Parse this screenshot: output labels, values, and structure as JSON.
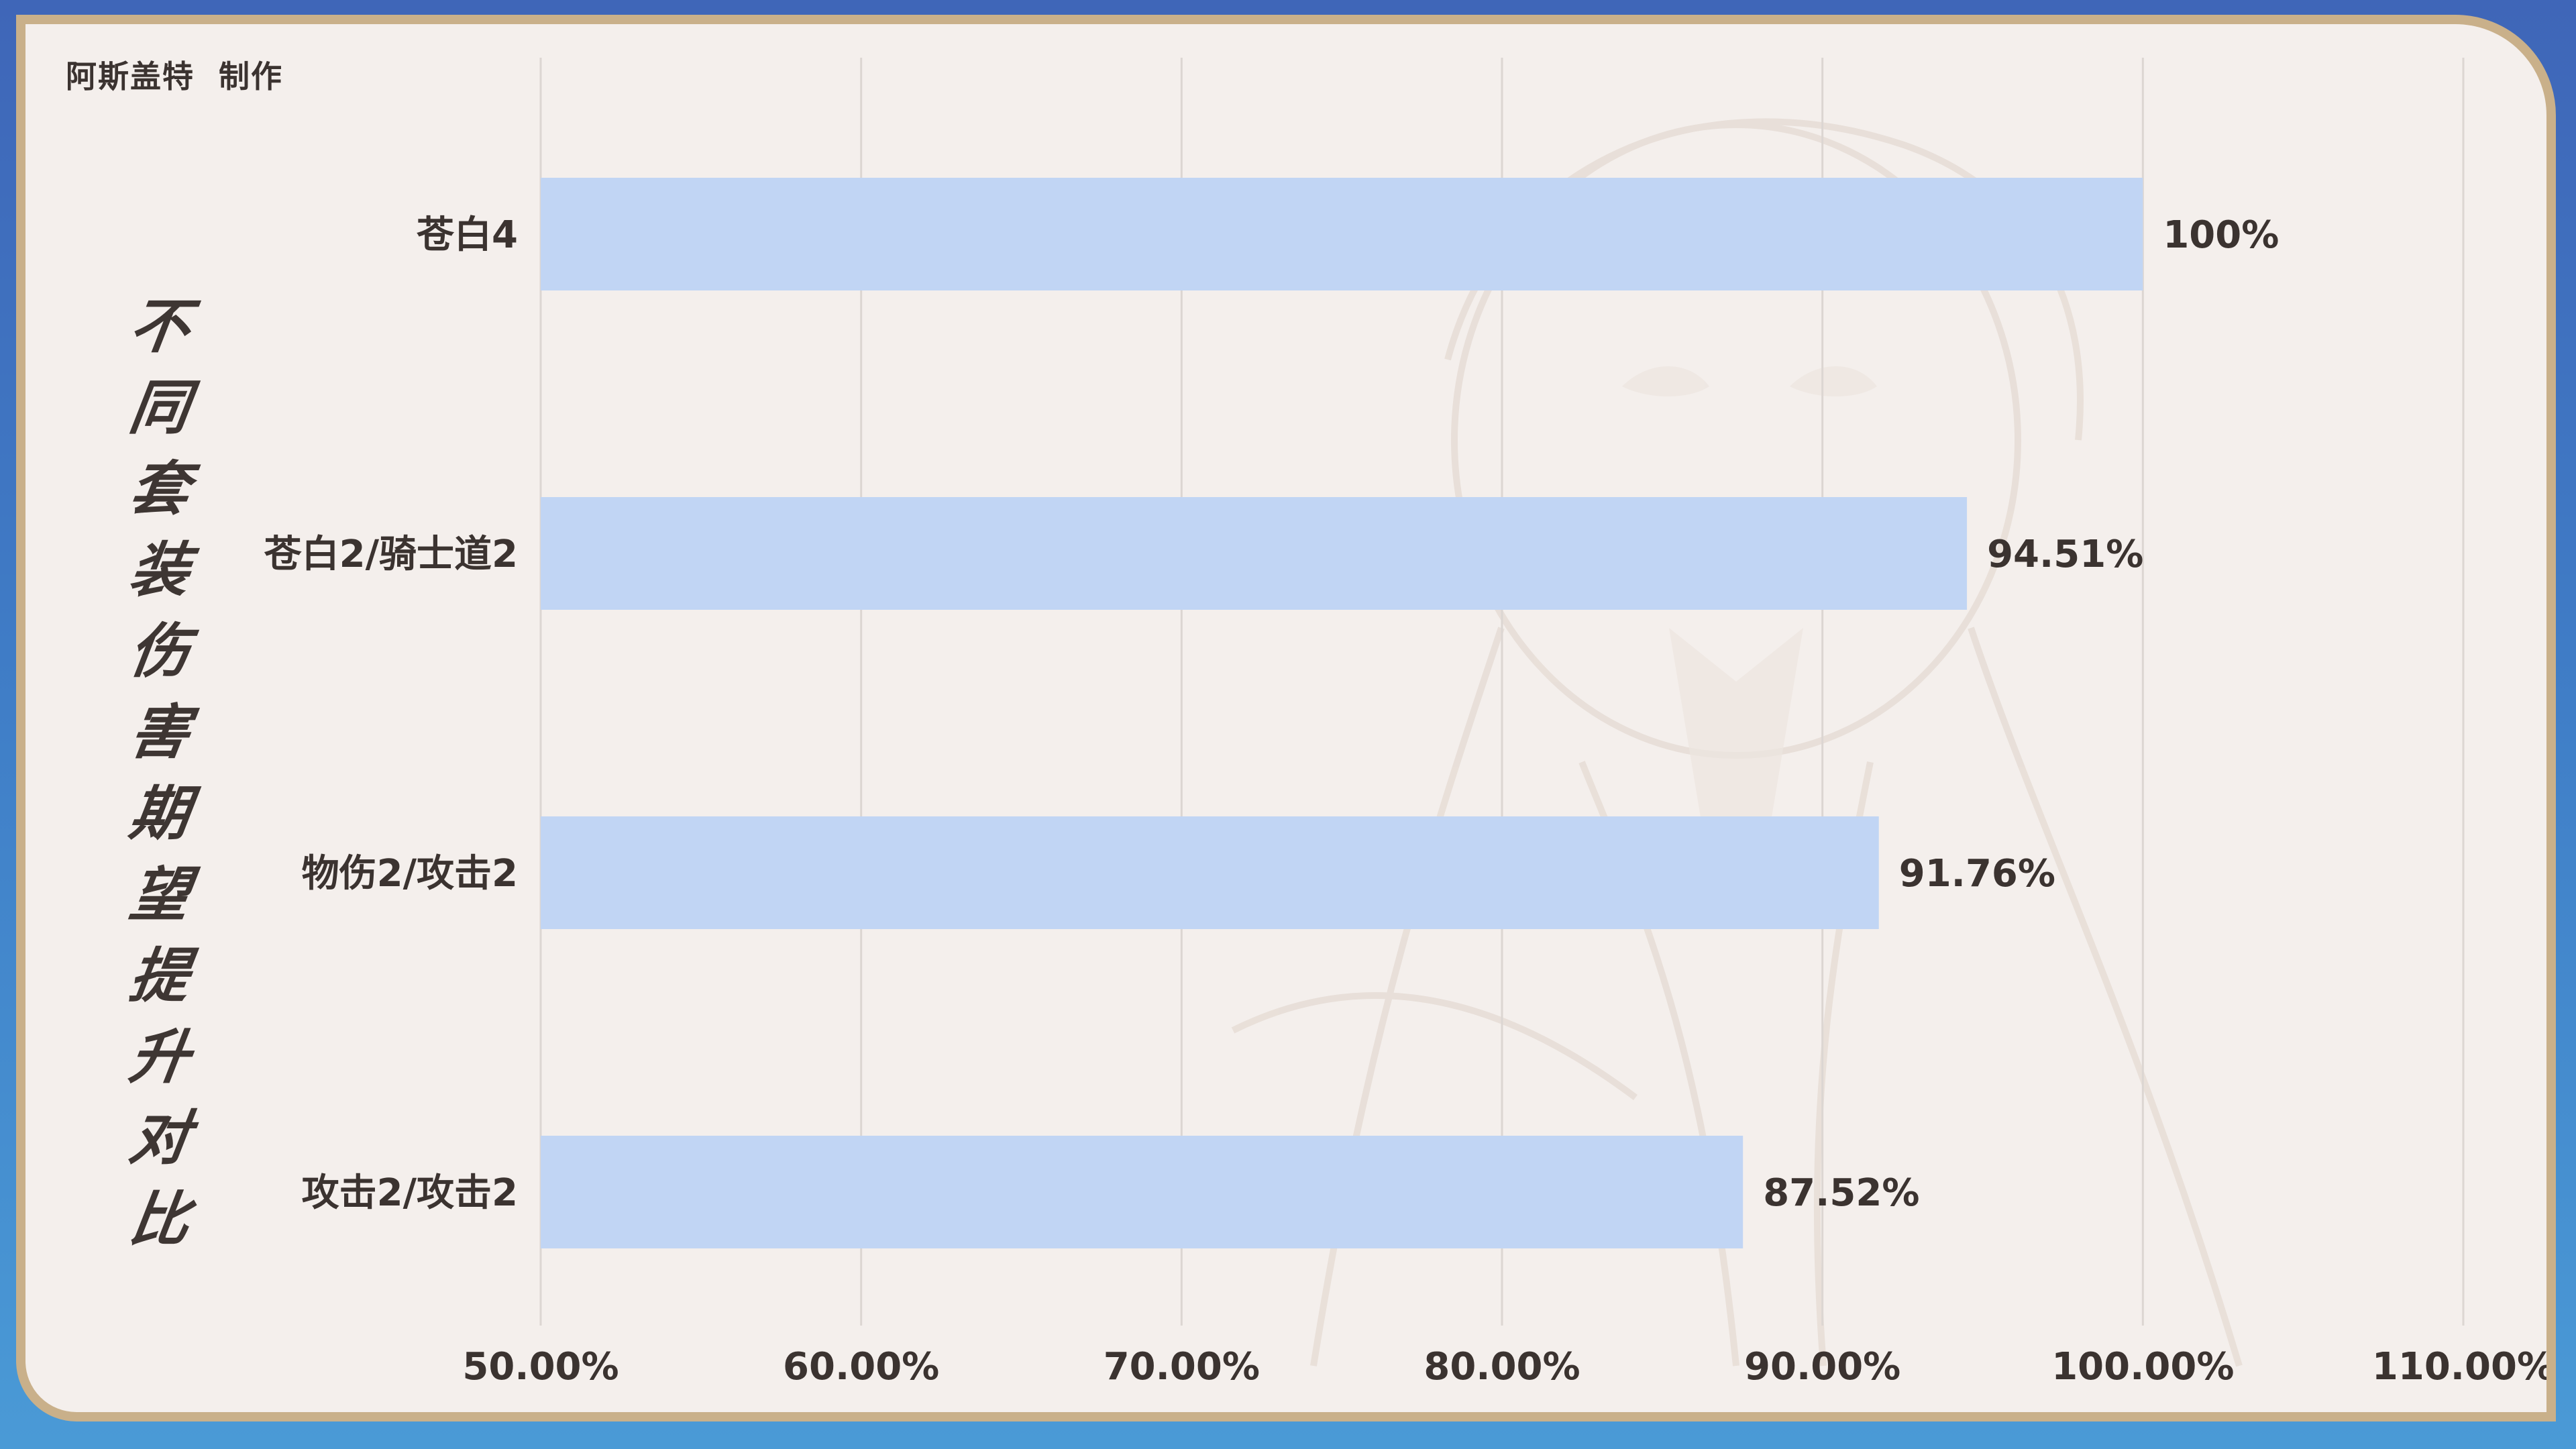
{
  "watermark": "阿斯盖特  制作",
  "chart_title_chars": [
    "不",
    "同",
    "套",
    "装",
    "伤",
    "害",
    "期",
    "望",
    "提",
    "升",
    "对",
    "比"
  ],
  "colors": {
    "bar": "#c1d5f4",
    "grid": "#dcd6d2",
    "text": "#3b3330",
    "frame": "#c9b08a",
    "panel": "#f4efec"
  },
  "chart_data": {
    "type": "bar",
    "orientation": "horizontal",
    "title": "不同套装伤害期望提升对比",
    "categories": [
      "苍白4",
      "苍白2/骑士道2",
      "物伤2/攻击2",
      "攻击2/攻击2"
    ],
    "values": [
      100,
      94.51,
      91.76,
      87.52
    ],
    "data_labels": [
      "100%",
      "94.51%",
      "91.76%",
      "87.52%"
    ],
    "xlim": [
      50,
      110
    ],
    "x_ticks": [
      50,
      60,
      70,
      80,
      90,
      100,
      110
    ],
    "x_tick_labels": [
      "50.00%",
      "60.00%",
      "70.00%",
      "80.00%",
      "90.00%",
      "100.00%",
      "110.00%"
    ],
    "grid": true,
    "legend": "none"
  }
}
